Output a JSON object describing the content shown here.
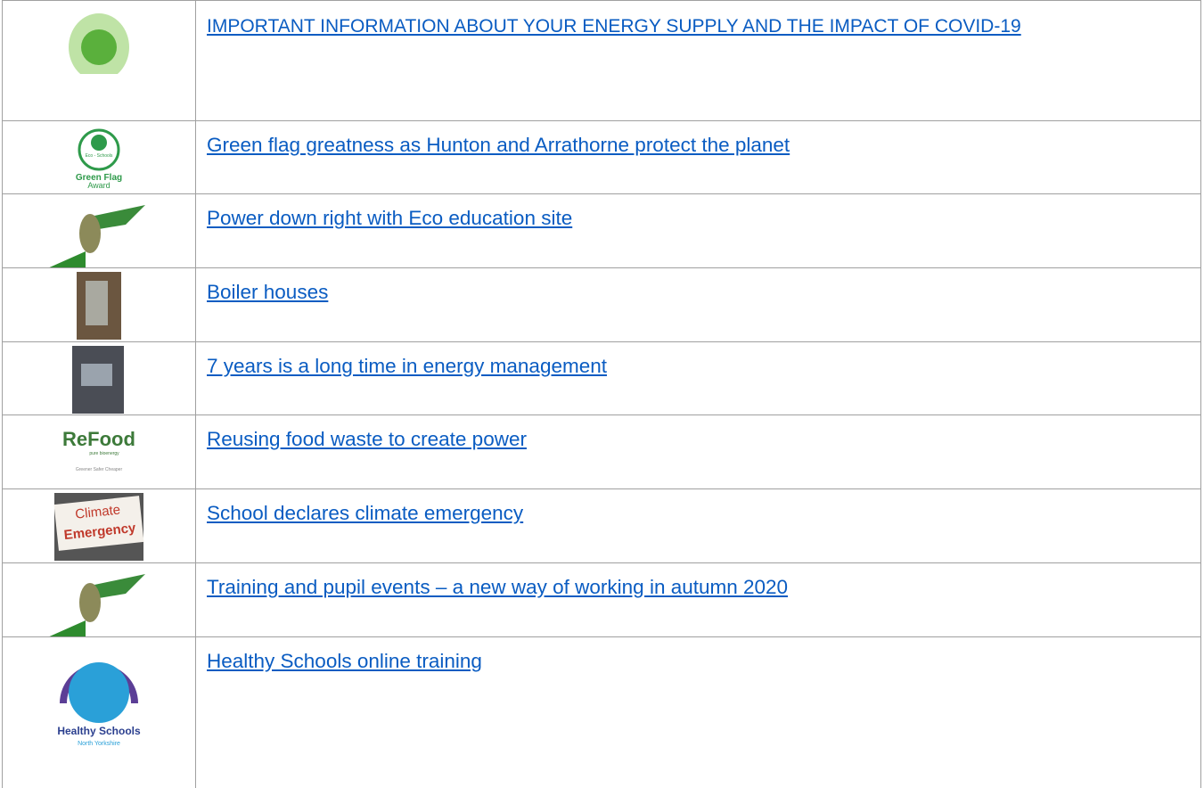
{
  "rows": [
    {
      "title": "IMPORTANT INFORMATION ABOUT YOUR ENERGY SUPPLY AND THE IMPACT OF COVID-19"
    },
    {
      "title": "Green flag greatness as Hunton and Arrathorne protect the planet",
      "thumbnail_text": [
        "Eco - Schools",
        "Green Flag",
        "Award"
      ]
    },
    {
      "title": "Power down right with Eco education site"
    },
    {
      "title": "Boiler houses"
    },
    {
      "title": "7 years is a long time in energy management"
    },
    {
      "title": "Reusing food waste to create power",
      "thumbnail_text": [
        "ReFood",
        "pure bioenergy",
        "Greener Safer Cheaper"
      ]
    },
    {
      "title": "School declares climate emergency",
      "thumbnail_text": [
        "Climate",
        "Emergency"
      ]
    },
    {
      "title": "Training and pupil events – a new way of working in autumn 2020"
    },
    {
      "title": "Healthy Schools online training",
      "thumbnail_text": [
        "Healthy Schools",
        "North Yorkshire"
      ]
    }
  ]
}
